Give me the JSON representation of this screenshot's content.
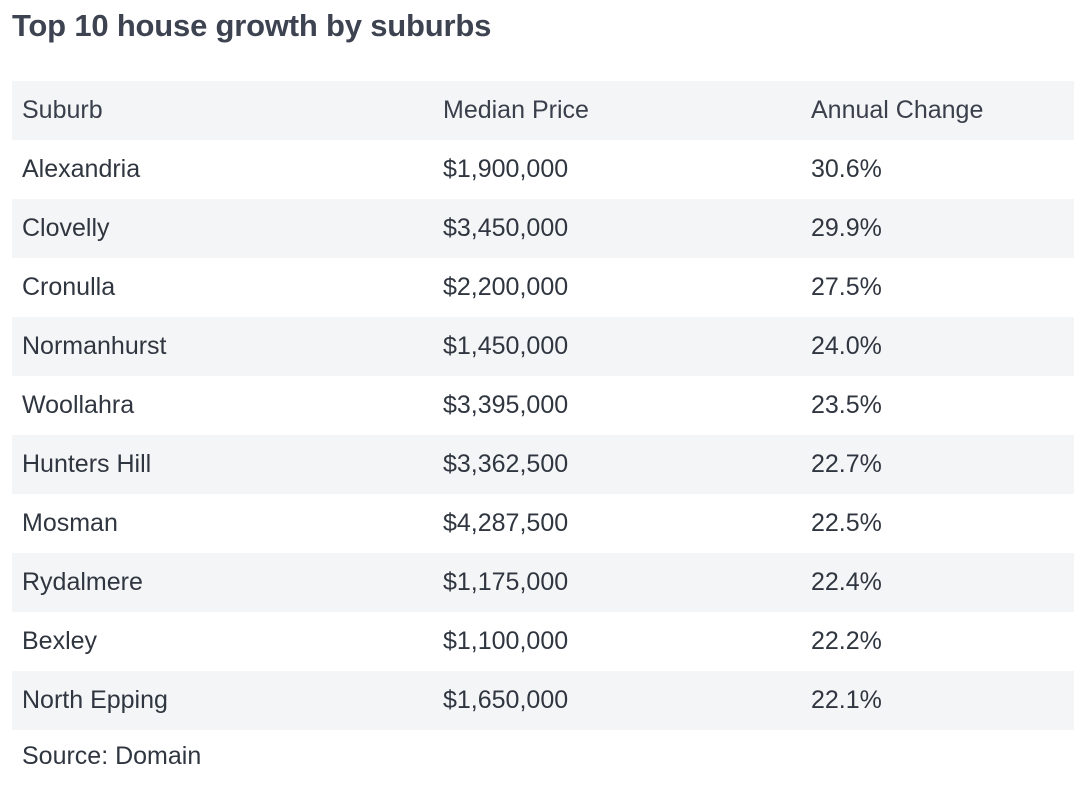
{
  "title": "Top 10 house growth by suburbs",
  "chart_data": {
    "type": "table",
    "title": "Top 10 house growth by suburbs",
    "columns": [
      "Suburb",
      "Median Price",
      "Annual Change"
    ],
    "rows": [
      [
        "Alexandria",
        "$1,900,000",
        "30.6%"
      ],
      [
        "Clovelly",
        "$3,450,000",
        "29.9%"
      ],
      [
        "Cronulla",
        "$2,200,000",
        "27.5%"
      ],
      [
        "Normanhurst",
        "$1,450,000",
        "24.0%"
      ],
      [
        "Woollahra",
        "$3,395,000",
        "23.5%"
      ],
      [
        "Hunters Hill",
        "$3,362,500",
        "22.7%"
      ],
      [
        "Mosman",
        "$4,287,500",
        "22.5%"
      ],
      [
        "Rydalmere",
        "$1,175,000",
        "22.4%"
      ],
      [
        "Bexley",
        "$1,100,000",
        "22.2%"
      ],
      [
        "North Epping",
        "$1,650,000",
        "22.1%"
      ]
    ],
    "source": "Source: Domain"
  }
}
